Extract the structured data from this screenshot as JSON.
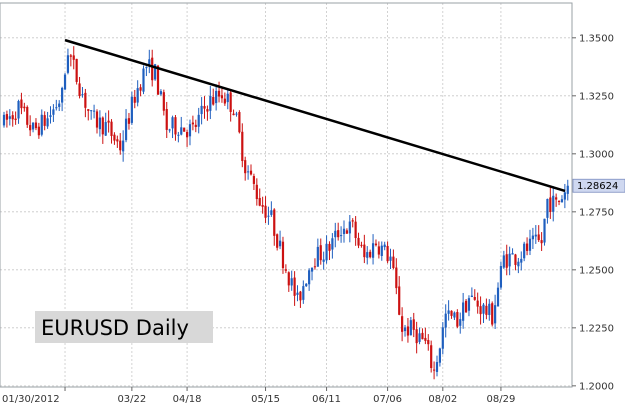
{
  "chart_data": {
    "type": "candlestick",
    "title": "EURUSD Daily",
    "instrument": "EURUSD",
    "timeframe": "Daily",
    "x_tick_labels": [
      "01/30/2012",
      "03/22",
      "04/18",
      "05/15",
      "06/11",
      "07/06",
      "08/02",
      "08/29"
    ],
    "y_tick_labels": [
      "1.3500",
      "1.3250",
      "1.3000",
      "1.2750",
      "1.2500",
      "1.2250",
      "1.2000"
    ],
    "y_ticks": [
      1.35,
      1.325,
      1.3,
      1.275,
      1.25,
      1.225,
      1.2
    ],
    "ylim": [
      1.1995,
      1.365
    ],
    "last_price_label": "1.28624",
    "last_price": 1.28624,
    "grid": true,
    "colors": {
      "up": "#1f5fbf",
      "down": "#cc1111",
      "grid": "#c8c8c8",
      "trendline": "#000000",
      "price_tag_bg": "#cfd8f0",
      "title_bg": "#d8d8d8"
    },
    "trendline": {
      "start_index": 21,
      "start_price": 1.349,
      "end_index": 194,
      "end_price": 1.2862
    },
    "waypoints": [
      [
        0,
        1.313
      ],
      [
        5,
        1.32
      ],
      [
        10,
        1.31
      ],
      [
        15,
        1.315
      ],
      [
        20,
        1.325
      ],
      [
        22,
        1.345
      ],
      [
        25,
        1.333
      ],
      [
        30,
        1.315
      ],
      [
        35,
        1.312
      ],
      [
        40,
        1.303
      ],
      [
        45,
        1.325
      ],
      [
        49,
        1.338
      ],
      [
        52,
        1.335
      ],
      [
        56,
        1.311
      ],
      [
        60,
        1.312
      ],
      [
        65,
        1.31
      ],
      [
        70,
        1.322
      ],
      [
        75,
        1.326
      ],
      [
        79,
        1.32
      ],
      [
        83,
        1.295
      ],
      [
        88,
        1.28
      ],
      [
        92,
        1.272
      ],
      [
        96,
        1.255
      ],
      [
        101,
        1.236
      ],
      [
        106,
        1.255
      ],
      [
        111,
        1.258
      ],
      [
        116,
        1.268
      ],
      [
        120,
        1.268
      ],
      [
        124,
        1.255
      ],
      [
        128,
        1.262
      ],
      [
        133,
        1.255
      ],
      [
        137,
        1.225
      ],
      [
        141,
        1.224
      ],
      [
        145,
        1.218
      ],
      [
        148,
        1.206
      ],
      [
        152,
        1.23
      ],
      [
        156,
        1.228
      ],
      [
        160,
        1.238
      ],
      [
        164,
        1.234
      ],
      [
        168,
        1.23
      ],
      [
        172,
        1.255
      ],
      [
        177,
        1.256
      ],
      [
        181,
        1.26
      ],
      [
        185,
        1.262
      ],
      [
        187,
        1.28
      ],
      [
        190,
        1.278
      ],
      [
        194,
        1.2862
      ]
    ]
  }
}
